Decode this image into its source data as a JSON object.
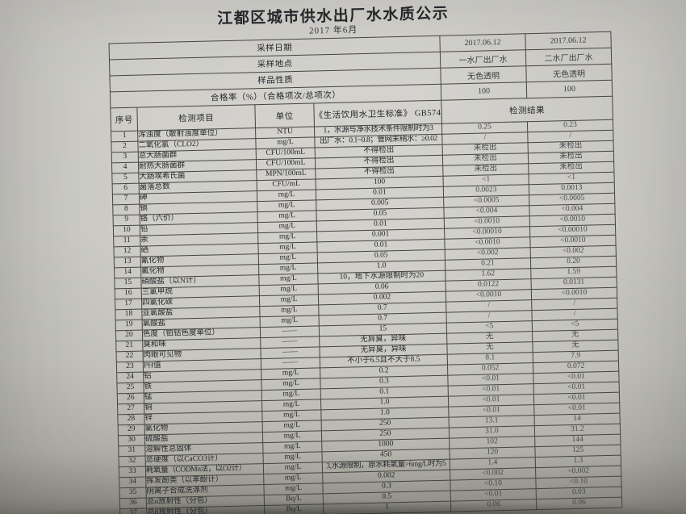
{
  "title": "江都区城市供水出厂水水质公示",
  "subtitle": "2017 年6月",
  "info_rows": [
    {
      "label": "采样日期",
      "plant1": "2017.06.12",
      "plant2": "2017.06.12"
    },
    {
      "label": "采样地点",
      "plant1": "一水厂出厂水",
      "plant2": "二水厂出厂水"
    },
    {
      "label": "样品性质",
      "plant1": "无色透明",
      "plant2": "无色透明"
    },
    {
      "label": "合格率（%）（合格项次/总项次）",
      "plant1": "100",
      "plant2": "100"
    }
  ],
  "columns": {
    "index": "序号",
    "item": "检测项目",
    "unit": "单位",
    "standard": "《生活饮用水卫生标准》 GB5749",
    "result": "检测结果"
  },
  "rows": [
    {
      "no": "1",
      "item": "浑浊度（散射浊度单位）",
      "unit": "NTU",
      "standard": "1，水源与净水技术条件限制时为3",
      "r1": "0.25",
      "r2": "0.23"
    },
    {
      "no": "2",
      "item": "二氧化氯（CLO2）",
      "unit": "mg/L",
      "standard": "出厂水：0.1~0.8；管网末稍水：≥0.02",
      "r1": "/",
      "r2": "/"
    },
    {
      "no": "3",
      "item": "总大肠菌群",
      "unit": "CFU/100mL",
      "standard": "不得检出",
      "r1": "未检出",
      "r2": "未检出"
    },
    {
      "no": "4",
      "item": "耐热大肠菌群",
      "unit": "CFU/100mL",
      "standard": "不得检出",
      "r1": "未检出",
      "r2": "未检出"
    },
    {
      "no": "5",
      "item": "大肠埃希氏菌",
      "unit": "MPN/100mL",
      "standard": "不得检出",
      "r1": "未检出",
      "r2": "未检出"
    },
    {
      "no": "6",
      "item": "菌落总数",
      "unit": "CFU/mL",
      "standard": "100",
      "r1": "<1",
      "r2": "<1"
    },
    {
      "no": "7",
      "item": "砷",
      "unit": "mg/L",
      "standard": "0.01",
      "r1": "0.0023",
      "r2": "0.0013"
    },
    {
      "no": "8",
      "item": "镉",
      "unit": "mg/L",
      "standard": "0.005",
      "r1": "<0.0005",
      "r2": "<0.0005"
    },
    {
      "no": "9",
      "item": "铬（六价）",
      "unit": "mg/L",
      "standard": "0.05",
      "r1": "<0.004",
      "r2": "<0.004"
    },
    {
      "no": "10",
      "item": "铅",
      "unit": "mg/L",
      "standard": "0.01",
      "r1": "<0.0010",
      "r2": "<0.0010"
    },
    {
      "no": "11",
      "item": "汞",
      "unit": "mg/L",
      "standard": "0.001",
      "r1": "<0.00010",
      "r2": "<0.00010"
    },
    {
      "no": "12",
      "item": "硒",
      "unit": "mg/L",
      "standard": "0.01",
      "r1": "<0.0010",
      "r2": "<0.0010"
    },
    {
      "no": "13",
      "item": "氰化物",
      "unit": "mg/L",
      "standard": "0.05",
      "r1": "<0.002",
      "r2": "<0.002"
    },
    {
      "no": "14",
      "item": "氟化物",
      "unit": "mg/L",
      "standard": "1.0",
      "r1": "0.21",
      "r2": "0.20"
    },
    {
      "no": "15",
      "item": "硝酸盐（以N计）",
      "unit": "mg/L",
      "standard": "10，地下水源限制时为20",
      "r1": "1.62",
      "r2": "1.59"
    },
    {
      "no": "16",
      "item": "三氯甲烷",
      "unit": "mg/L",
      "standard": "0.06",
      "r1": "0.0122",
      "r2": "0.0131"
    },
    {
      "no": "17",
      "item": "四氯化碳",
      "unit": "mg/L",
      "standard": "0.002",
      "r1": "<0.0010",
      "r2": "<0.0010"
    },
    {
      "no": "18",
      "item": "亚氯酸盐",
      "unit": "mg/L",
      "standard": "0.7",
      "r1": "/",
      "r2": "/"
    },
    {
      "no": "19",
      "item": "氯酸盐",
      "unit": "mg/L",
      "standard": "0.7",
      "r1": "/",
      "r2": "/"
    },
    {
      "no": "20",
      "item": "色度（铂钴色度单位）",
      "unit": "——",
      "standard": "15",
      "r1": "<5",
      "r2": "<5"
    },
    {
      "no": "21",
      "item": "臭和味",
      "unit": "——",
      "standard": "无异臭，异味",
      "r1": "无",
      "r2": "无"
    },
    {
      "no": "22",
      "item": "肉眼可见物",
      "unit": "——",
      "standard": "无异臭，异味",
      "r1": "无",
      "r2": "无"
    },
    {
      "no": "23",
      "item": "PH值",
      "unit": "——",
      "standard": "不小于6.5且不大于8.5",
      "r1": "8.1",
      "r2": "7.9"
    },
    {
      "no": "24",
      "item": "铝",
      "unit": "mg/L",
      "standard": "0.2",
      "r1": "0.052",
      "r2": "0.072"
    },
    {
      "no": "25",
      "item": "铁",
      "unit": "mg/L",
      "standard": "0.3",
      "r1": "<0.01",
      "r2": "<0.01"
    },
    {
      "no": "26",
      "item": "锰",
      "unit": "mg/L",
      "standard": "0.1",
      "r1": "<0.01",
      "r2": "<0.01"
    },
    {
      "no": "27",
      "item": "铜",
      "unit": "mg/L",
      "standard": "1.0",
      "r1": "<0.01",
      "r2": "<0.01"
    },
    {
      "no": "28",
      "item": "锌",
      "unit": "mg/L",
      "standard": "1.0",
      "r1": "<0.01",
      "r2": "<0.01"
    },
    {
      "no": "29",
      "item": "氯化物",
      "unit": "mg/L",
      "standard": "250",
      "r1": "13.1",
      "r2": "14"
    },
    {
      "no": "30",
      "item": "硫酸盐",
      "unit": "mg/L",
      "standard": "250",
      "r1": "31.0",
      "r2": "31.2"
    },
    {
      "no": "31",
      "item": "溶解性总固体",
      "unit": "mg/L",
      "standard": "1000",
      "r1": "102",
      "r2": "144"
    },
    {
      "no": "32",
      "item": "总硬度（以CaCO3计）",
      "unit": "mg/L",
      "standard": "450",
      "r1": "120",
      "r2": "125"
    },
    {
      "no": "33",
      "item": "耗氧量（CODMn法，以O2计）",
      "unit": "mg/L",
      "standard": "3,水源限制，原水耗氧量>6mg/L时为5",
      "r1": "1.4",
      "r2": "1.3"
    },
    {
      "no": "34",
      "item": "挥发酚类（以苯酚计）",
      "unit": "mg/L",
      "standard": "0.002",
      "r1": "<0.002",
      "r2": "<0.002"
    },
    {
      "no": "35",
      "item": "阴离子合成洗涤剂",
      "unit": "mg/L",
      "standard": "0.3",
      "r1": "<0.10",
      "r2": "<0.10"
    },
    {
      "no": "36",
      "item": "总α放射性（分包）",
      "unit": "Bq/L",
      "standard": "0.5",
      "r1": "<0.01",
      "r2": "0.03"
    },
    {
      "no": "37",
      "item": "总β放射性（分包）",
      "unit": "Bq/L",
      "standard": "1",
      "r1": "0.06",
      "r2": "0.06"
    }
  ],
  "colors": {
    "paper": "#d0cfc9",
    "ink": "#26262b",
    "table_border": "#45443f"
  }
}
